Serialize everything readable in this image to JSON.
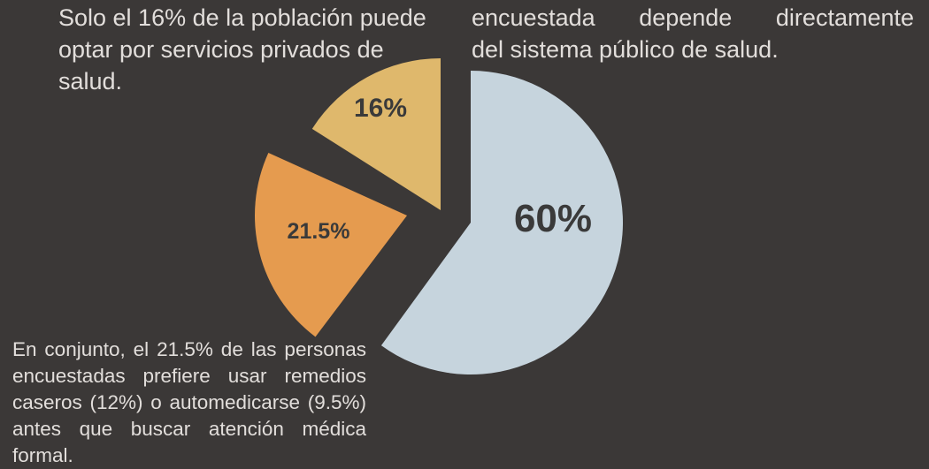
{
  "texts": {
    "left_note": "Solo el 16% de la población puede optar por servicios privados de salud.",
    "right_note_line1": "encuestada depende directamente",
    "right_note_line2": "del sistema público de salud.",
    "bottom_note": "En conjunto, el 21.5% de las personas encuestadas prefiere usar remedios caseros (12%) o automedicarse (9.5%) antes que buscar atención médica formal."
  },
  "chart_data": {
    "type": "pie",
    "exploded": true,
    "slices": [
      {
        "label": "60%",
        "value": 60,
        "color": "#c6d4dd"
      },
      {
        "label": "21.5%",
        "value": 21.5,
        "color": "#e59b4f"
      },
      {
        "label": "16%",
        "value": 16,
        "color": "#dfb86c"
      }
    ]
  },
  "colors": {
    "background": "#3b3837",
    "text": "#e2dedb",
    "label_dark": "#3a3a3a"
  }
}
